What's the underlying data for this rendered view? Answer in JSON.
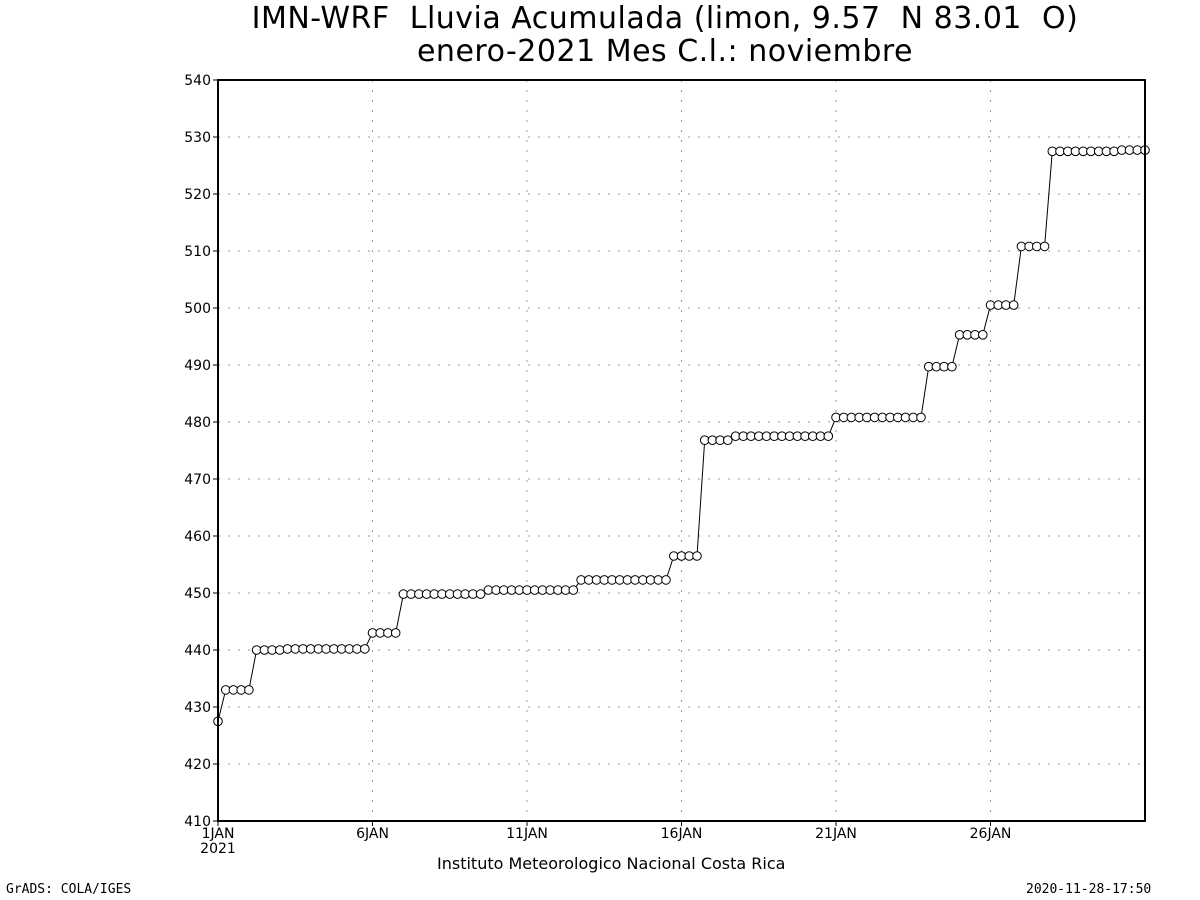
{
  "chart_data": {
    "type": "line",
    "title": "IMN-WRF  Lluvia Acumulada (limon, 9.57  N 83.01  O)",
    "subtitle": "enero-2021 Mes C.l.: noviembre",
    "xlabel": "Instituto Meteorologico Nacional Costa Rica",
    "ylabel": "",
    "ylim": [
      410,
      540
    ],
    "yticks": [
      410,
      420,
      430,
      440,
      450,
      460,
      470,
      480,
      490,
      500,
      510,
      520,
      530,
      540
    ],
    "xlim_days": [
      1,
      31
    ],
    "xticks": [
      {
        "day": 1,
        "label": "1JAN",
        "sublabel": "2021"
      },
      {
        "day": 6,
        "label": "6JAN",
        "sublabel": ""
      },
      {
        "day": 11,
        "label": "11JAN",
        "sublabel": ""
      },
      {
        "day": 16,
        "label": "16JAN",
        "sublabel": ""
      },
      {
        "day": 21,
        "label": "21JAN",
        "sublabel": ""
      },
      {
        "day": 26,
        "label": "26JAN",
        "sublabel": ""
      }
    ],
    "grid": true,
    "marker": "open-circle",
    "series": [
      {
        "values": [
          427.5,
          433.0,
          433.0,
          433.0,
          433.0,
          440.0,
          440.0,
          440.0,
          440.0,
          440.2,
          440.2,
          440.2,
          440.2,
          440.2,
          440.2,
          440.2,
          440.2,
          440.2,
          440.2,
          440.2,
          443.0,
          443.0,
          443.0,
          443.0,
          449.8,
          449.8,
          449.8,
          449.8,
          449.8,
          449.8,
          449.8,
          449.8,
          449.8,
          449.8,
          449.8,
          450.5,
          450.5,
          450.5,
          450.5,
          450.5,
          450.5,
          450.5,
          450.5,
          450.5,
          450.5,
          450.5,
          450.5,
          452.3,
          452.3,
          452.3,
          452.3,
          452.3,
          452.3,
          452.3,
          452.3,
          452.3,
          452.3,
          452.3,
          452.3,
          456.5,
          456.5,
          456.5,
          456.5,
          476.8,
          476.8,
          476.8,
          476.8,
          477.5,
          477.5,
          477.5,
          477.5,
          477.5,
          477.5,
          477.5,
          477.5,
          477.5,
          477.5,
          477.5,
          477.5,
          477.5,
          480.8,
          480.8,
          480.8,
          480.8,
          480.8,
          480.8,
          480.8,
          480.8,
          480.8,
          480.8,
          480.8,
          480.8,
          489.7,
          489.7,
          489.7,
          489.7,
          495.3,
          495.3,
          495.3,
          495.3,
          500.5,
          500.5,
          500.5,
          500.5,
          510.8,
          510.8,
          510.8,
          510.8,
          527.5,
          527.5,
          527.5,
          527.5,
          527.5,
          527.5,
          527.5,
          527.5,
          527.5,
          527.7,
          527.7,
          527.7,
          527.7
        ]
      }
    ]
  },
  "footer": {
    "left": "GrADS: COLA/IGES",
    "right": "2020-11-28-17:50"
  }
}
